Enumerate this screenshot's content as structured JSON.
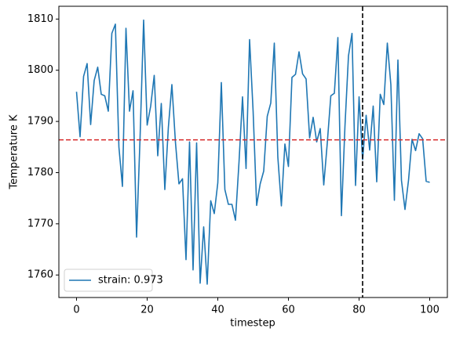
{
  "chart_data": {
    "type": "line",
    "xlabel": "timestep",
    "ylabel": "Temperature K",
    "x": [
      0,
      1,
      2,
      3,
      4,
      5,
      6,
      7,
      8,
      9,
      10,
      11,
      12,
      13,
      14,
      15,
      16,
      17,
      18,
      19,
      20,
      21,
      22,
      23,
      24,
      25,
      26,
      27,
      28,
      29,
      30,
      31,
      32,
      33,
      34,
      35,
      36,
      37,
      38,
      39,
      40,
      41,
      42,
      43,
      44,
      45,
      46,
      47,
      48,
      49,
      50,
      51,
      52,
      53,
      54,
      55,
      56,
      57,
      58,
      59,
      60,
      61,
      62,
      63,
      64,
      65,
      66,
      67,
      68,
      69,
      70,
      71,
      72,
      73,
      74,
      75,
      76,
      77,
      78,
      79,
      80,
      81,
      82,
      83,
      84,
      85,
      86,
      87,
      88,
      89,
      90,
      91,
      92,
      93,
      94,
      95,
      96,
      97,
      98,
      99,
      100
    ],
    "series": [
      {
        "name": "strain: 0.973",
        "color": "#1f77b4",
        "values": [
          1795.8,
          1787,
          1798.8,
          1801.3,
          1789.4,
          1798,
          1800.6,
          1795.3,
          1795,
          1792,
          1807.2,
          1809,
          1785,
          1777.3,
          1808.2,
          1792,
          1796,
          1767.4,
          1787,
          1809.8,
          1789.3,
          1793,
          1799,
          1783.3,
          1793.5,
          1776.7,
          1788.8,
          1797.2,
          1786,
          1777.8,
          1778.8,
          1763,
          1786,
          1761,
          1785.8,
          1758.4,
          1769.4,
          1758.2,
          1774.5,
          1772,
          1778,
          1797.6,
          1776.7,
          1773.8,
          1773.8,
          1770.7,
          1782,
          1794.8,
          1780.8,
          1806,
          1792,
          1773.6,
          1777.8,
          1780.3,
          1791,
          1793.6,
          1805.3,
          1783,
          1773.5,
          1785.6,
          1781.2,
          1798.6,
          1799.2,
          1803.6,
          1799.3,
          1798.3,
          1786.8,
          1790.8,
          1786,
          1788.6,
          1777.6,
          1785.8,
          1795,
          1795.5,
          1806.4,
          1771.6,
          1789,
          1802.8,
          1807.2,
          1777.5,
          1794.8,
          1782.5,
          1791.2,
          1784.4,
          1793,
          1778.2,
          1795.3,
          1793.3,
          1805.3,
          1797.2,
          1774.6,
          1802,
          1778.5,
          1772.8,
          1778.5,
          1786.5,
          1784.3,
          1787.6,
          1786.6,
          1778.3,
          1778.1
        ]
      }
    ],
    "hline": {
      "value": 1786.4,
      "color": "#d62728"
    },
    "vline": {
      "value": 81,
      "color": "#000000"
    },
    "xlim": [
      -5,
      105
    ],
    "ylim": [
      1755.6,
      1812.5
    ],
    "xticks": [
      0,
      20,
      40,
      60,
      80,
      100
    ],
    "yticks": [
      1760,
      1770,
      1780,
      1790,
      1800,
      1810
    ],
    "legend": "lower left"
  }
}
